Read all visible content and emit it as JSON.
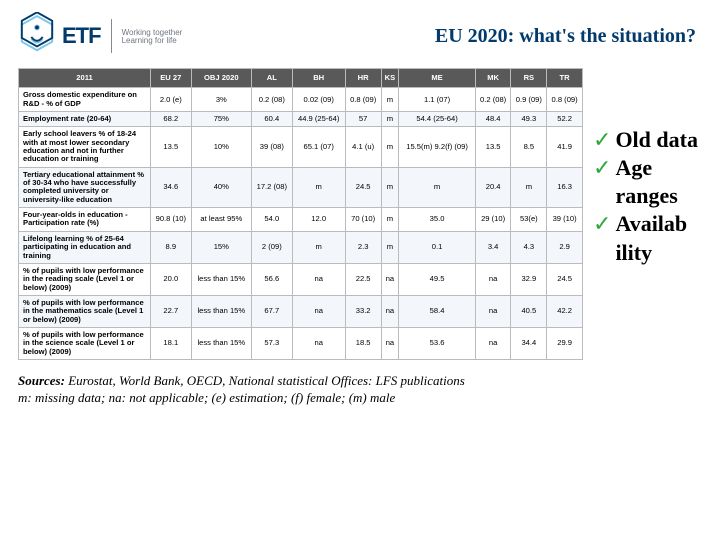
{
  "header": {
    "logo_text": "ETF",
    "tagline_line1": "Working together",
    "tagline_line2": "Learning for life",
    "title": "EU 2020: what's the situation?"
  },
  "bullets": {
    "b1": "Old data",
    "b2": "Age ranges",
    "b3": "Availab ility"
  },
  "table": {
    "headers": {
      "h0": "2011",
      "h1": "EU 27",
      "h2": "OBJ 2020",
      "h3": "AL",
      "h4": "BH",
      "h5": "HR",
      "h6": "KS",
      "h7": "ME",
      "h8": "MK",
      "h9": "RS",
      "h10": "TR"
    },
    "rows": {
      "r0": {
        "label": "Gross domestic expenditure on R&D - % of GDP",
        "c0": "2.0 (e)",
        "c1": "3%",
        "c2": "0.2 (08)",
        "c3": "0.02 (09)",
        "c4": "0.8 (09)",
        "c5": "m",
        "c6": "1.1 (07)",
        "c7": "0.2 (08)",
        "c8": "0.9 (09)",
        "c9": "0.8 (09)"
      },
      "r1": {
        "label": "Employment rate (20-64)",
        "c0": "68.2",
        "c1": "75%",
        "c2": "60.4",
        "c3": "44.9 (25-64)",
        "c4": "57",
        "c5": "m",
        "c6": "54.4 (25-64)",
        "c7": "48.4",
        "c8": "49.3",
        "c9": "52.2"
      },
      "r2": {
        "label": "Early school leavers % of 18-24 with at most lower secondary education and not in further education or training",
        "c0": "13.5",
        "c1": "10%",
        "c2": "39 (08)",
        "c3": "65.1 (07)",
        "c4": "4.1 (u)",
        "c5": "m",
        "c6": "15.5(m) 9.2(f) (09)",
        "c7": "13.5",
        "c8": "8.5",
        "c9": "41.9"
      },
      "r3": {
        "label": "Tertiary educational attainment % of 30-34 who have successfully completed university or university-like education",
        "c0": "34.6",
        "c1": "40%",
        "c2": "17.2 (08)",
        "c3": "m",
        "c4": "24.5",
        "c5": "m",
        "c6": "m",
        "c7": "20.4",
        "c8": "m",
        "c9": "16.3"
      },
      "r4": {
        "label": "Four-year-olds in education - Participation rate (%)",
        "c0": "90.8 (10)",
        "c1": "at least 95%",
        "c2": "54.0",
        "c3": "12.0",
        "c4": "70 (10)",
        "c5": "m",
        "c6": "35.0",
        "c7": "29 (10)",
        "c8": "53(e)",
        "c9": "39 (10)"
      },
      "r5": {
        "label": "Lifelong learning % of 25-64 participating in education and training",
        "c0": "8.9",
        "c1": "15%",
        "c2": "2 (09)",
        "c3": "m",
        "c4": "2.3",
        "c5": "m",
        "c6": "0.1",
        "c7": "3.4",
        "c8": "4.3",
        "c9": "2.9"
      },
      "r6": {
        "label": "% of pupils with low performance in the reading scale (Level 1 or below) (2009)",
        "c0": "20.0",
        "c1": "less than 15%",
        "c2": "56.6",
        "c3": "na",
        "c4": "22.5",
        "c5": "na",
        "c6": "49.5",
        "c7": "na",
        "c8": "32.9",
        "c9": "24.5"
      },
      "r7": {
        "label": "% of pupils with low performance in the mathematics scale (Level 1 or below) (2009)",
        "c0": "22.7",
        "c1": "less than 15%",
        "c2": "67.7",
        "c3": "na",
        "c4": "33.2",
        "c5": "na",
        "c6": "58.4",
        "c7": "na",
        "c8": "40.5",
        "c9": "42.2"
      },
      "r8": {
        "label": "% of pupils with low performance in the science scale (Level 1 or below) (2009)",
        "c0": "18.1",
        "c1": "less than 15%",
        "c2": "57.3",
        "c3": "na",
        "c4": "18.5",
        "c5": "na",
        "c6": "53.6",
        "c7": "na",
        "c8": "34.4",
        "c9": "29.9"
      }
    }
  },
  "sources": {
    "lead": "Sources:",
    "line1": " Eurostat, World Bank, OECD, National statistical Offices: LFS publications",
    "line2": "m: missing data; na: not applicable; (e) estimation; (f) female; (m) male"
  }
}
